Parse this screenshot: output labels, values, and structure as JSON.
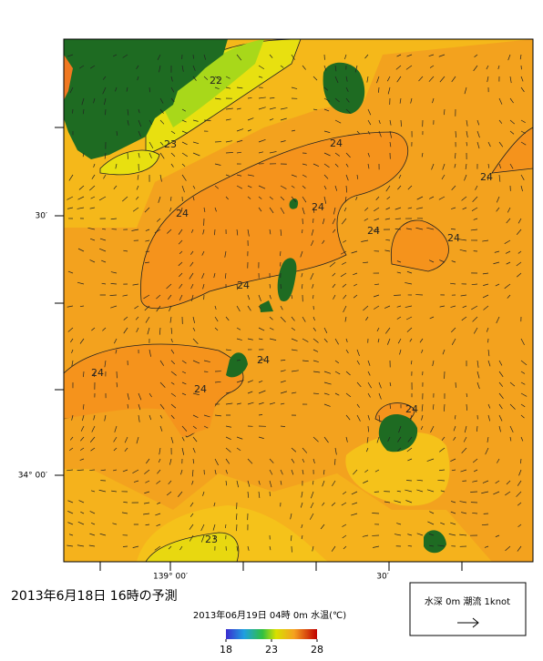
{
  "title": "2013年6月18日 16時の予測",
  "subtitle": "2013年06月19日 04時 0m 水温(℃)",
  "lat_labels": [
    "30′",
    "34° 00′"
  ],
  "lon_labels": [
    "139° 00′",
    "30′"
  ],
  "contour_labels": [
    "22",
    "23",
    "24",
    "24",
    "24",
    "24",
    "24",
    "24",
    "24",
    "24",
    "24",
    "24",
    "24",
    "23"
  ],
  "colorbar": {
    "ticks": [
      18,
      23,
      28
    ]
  },
  "legend": {
    "text": "水深 0m 潮流 1knot"
  }
}
